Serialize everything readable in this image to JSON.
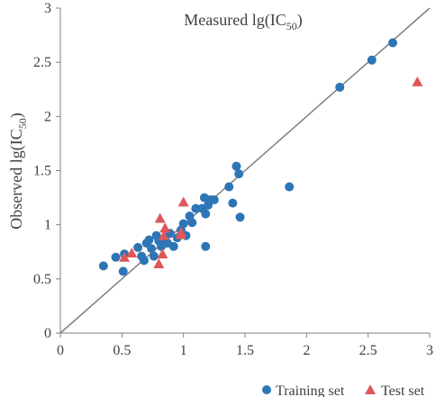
{
  "chart_data": {
    "type": "scatter",
    "title": {
      "main": "Measured lg(IC",
      "sub": "50",
      "close": ")"
    },
    "ylabel": {
      "main": "Observed lg(IC",
      "sub": "50",
      "close": ")"
    },
    "xlabel": "",
    "xlim": [
      0,
      3
    ],
    "ylim": [
      0,
      3
    ],
    "x_ticks": [
      "0",
      "0.5",
      "1",
      "1.5",
      "2",
      "2.5",
      "3"
    ],
    "y_ticks": [
      "0",
      "0.5",
      "1",
      "1.5",
      "2",
      "2.5",
      "3"
    ],
    "grid": false,
    "legend_position": "bottom-right",
    "reference_line": {
      "from": [
        0,
        0
      ],
      "to": [
        3,
        3
      ],
      "color": "#808080"
    },
    "series": [
      {
        "name": "Training set",
        "marker": "circle",
        "color": "#2E75B6",
        "points": [
          [
            0.35,
            0.62
          ],
          [
            0.45,
            0.7
          ],
          [
            0.52,
            0.73
          ],
          [
            0.51,
            0.57
          ],
          [
            0.63,
            0.79
          ],
          [
            0.66,
            0.71
          ],
          [
            0.68,
            0.67
          ],
          [
            0.7,
            0.83
          ],
          [
            0.72,
            0.86
          ],
          [
            0.74,
            0.78
          ],
          [
            0.76,
            0.71
          ],
          [
            0.78,
            0.9
          ],
          [
            0.8,
            0.85
          ],
          [
            0.82,
            0.8
          ],
          [
            0.85,
            0.88
          ],
          [
            0.87,
            0.83
          ],
          [
            0.89,
            0.92
          ],
          [
            0.92,
            0.8
          ],
          [
            0.95,
            0.88
          ],
          [
            0.98,
            0.95
          ],
          [
            1.0,
            1.01
          ],
          [
            1.02,
            0.9
          ],
          [
            1.05,
            1.08
          ],
          [
            1.07,
            1.02
          ],
          [
            1.1,
            1.15
          ],
          [
            1.15,
            1.15
          ],
          [
            1.17,
            1.25
          ],
          [
            1.18,
            1.1
          ],
          [
            1.2,
            1.18
          ],
          [
            1.22,
            1.23
          ],
          [
            1.18,
            0.8
          ],
          [
            1.25,
            1.23
          ],
          [
            1.37,
            1.35
          ],
          [
            1.4,
            1.2
          ],
          [
            1.43,
            1.54
          ],
          [
            1.45,
            1.47
          ],
          [
            1.46,
            1.07
          ],
          [
            1.86,
            1.35
          ],
          [
            2.27,
            2.27
          ],
          [
            2.53,
            2.52
          ],
          [
            2.7,
            2.68
          ]
        ]
      },
      {
        "name": "Test set",
        "marker": "triangle",
        "color": "#E15759",
        "points": [
          [
            0.52,
            0.7
          ],
          [
            0.58,
            0.74
          ],
          [
            0.8,
            0.64
          ],
          [
            0.81,
            1.06
          ],
          [
            0.83,
            0.73
          ],
          [
            0.84,
            0.9
          ],
          [
            0.85,
            0.97
          ],
          [
            0.98,
            0.93
          ],
          [
            0.98,
            0.91
          ],
          [
            1.0,
            1.21
          ],
          [
            2.9,
            2.32
          ]
        ]
      }
    ]
  }
}
